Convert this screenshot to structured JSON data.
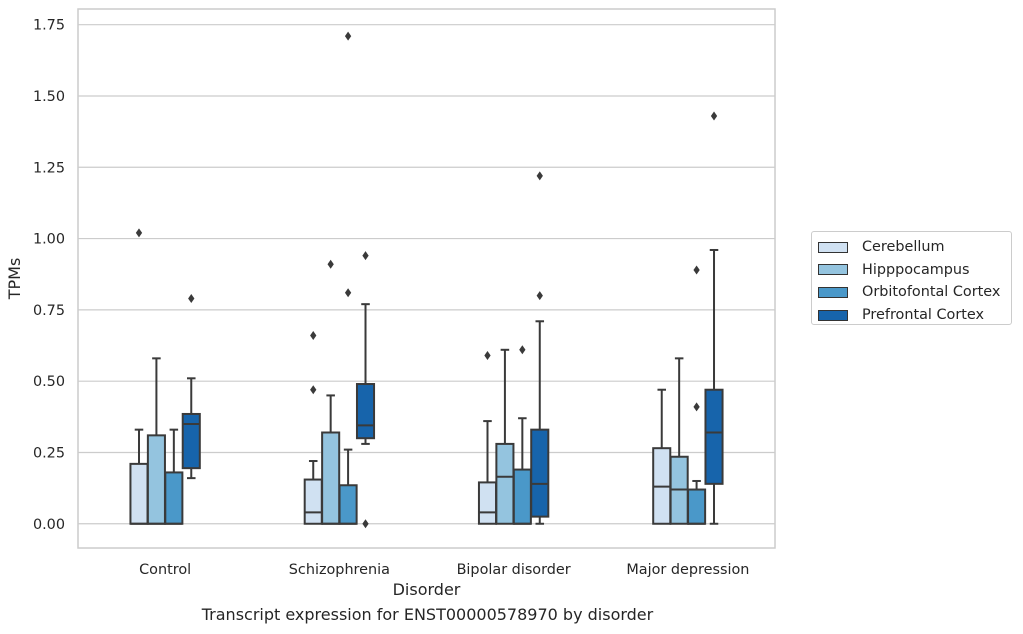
{
  "caption": "Transcript expression for ENST00000578970 by disorder",
  "chart_data": {
    "type": "box",
    "title": "",
    "xlabel": "Disorder",
    "ylabel": "TPMs",
    "ylim": [
      -0.085,
      1.805
    ],
    "yticks": [
      0.0,
      0.25,
      0.5,
      0.75,
      1.0,
      1.25,
      1.5,
      1.75
    ],
    "ytick_labels": [
      "0.00",
      "0.25",
      "0.50",
      "0.75",
      "1.00",
      "1.25",
      "1.50",
      "1.75"
    ],
    "grid": "horizontal",
    "legend_position": "right",
    "categories": [
      "Control",
      "Schizophrenia",
      "Bipolar disorder",
      "Major depression"
    ],
    "series": [
      {
        "name": "Cerebellum",
        "color": "#d0e1f2",
        "boxes": [
          {
            "whislo": 0.0,
            "q1": 0.0,
            "med": 0.0,
            "q3": 0.21,
            "whishi": 0.33,
            "fliers": [
              1.02
            ]
          },
          {
            "whislo": 0.0,
            "q1": 0.0,
            "med": 0.04,
            "q3": 0.155,
            "whishi": 0.22,
            "fliers": [
              0.66,
              0.47
            ]
          },
          {
            "whislo": 0.0,
            "q1": 0.0,
            "med": 0.04,
            "q3": 0.145,
            "whishi": 0.36,
            "fliers": [
              0.59
            ]
          },
          {
            "whislo": 0.0,
            "q1": 0.0,
            "med": 0.13,
            "q3": 0.265,
            "whishi": 0.47,
            "fliers": []
          }
        ]
      },
      {
        "name": "Hipppocampus",
        "color": "#94c4df",
        "boxes": [
          {
            "whislo": 0.0,
            "q1": 0.0,
            "med": 0.0,
            "q3": 0.31,
            "whishi": 0.58,
            "fliers": []
          },
          {
            "whislo": 0.0,
            "q1": 0.0,
            "med": 0.0,
            "q3": 0.32,
            "whishi": 0.45,
            "fliers": [
              0.91
            ]
          },
          {
            "whislo": 0.0,
            "q1": 0.0,
            "med": 0.165,
            "q3": 0.28,
            "whishi": 0.61,
            "fliers": []
          },
          {
            "whislo": 0.0,
            "q1": 0.0,
            "med": 0.12,
            "q3": 0.235,
            "whishi": 0.58,
            "fliers": []
          }
        ]
      },
      {
        "name": "Orbitofontal Cortex",
        "color": "#4a98c9",
        "boxes": [
          {
            "whislo": 0.0,
            "q1": 0.0,
            "med": 0.0,
            "q3": 0.18,
            "whishi": 0.33,
            "fliers": []
          },
          {
            "whislo": 0.0,
            "q1": 0.0,
            "med": 0.0,
            "q3": 0.135,
            "whishi": 0.26,
            "fliers": [
              1.71,
              0.81
            ]
          },
          {
            "whislo": 0.0,
            "q1": 0.0,
            "med": 0.0,
            "q3": 0.19,
            "whishi": 0.37,
            "fliers": [
              0.61
            ]
          },
          {
            "whislo": 0.0,
            "q1": 0.0,
            "med": 0.0,
            "q3": 0.12,
            "whishi": 0.15,
            "fliers": [
              0.89,
              0.41
            ]
          }
        ]
      },
      {
        "name": "Prefrontal Cortex",
        "color": "#1764ab",
        "boxes": [
          {
            "whislo": 0.16,
            "q1": 0.195,
            "med": 0.35,
            "q3": 0.385,
            "whishi": 0.51,
            "fliers": [
              0.79
            ]
          },
          {
            "whislo": 0.28,
            "q1": 0.3,
            "med": 0.345,
            "q3": 0.49,
            "whishi": 0.77,
            "fliers": [
              0.94,
              0.0
            ]
          },
          {
            "whislo": 0.0,
            "q1": 0.025,
            "med": 0.14,
            "q3": 0.33,
            "whishi": 0.71,
            "fliers": [
              1.22,
              0.8
            ]
          },
          {
            "whislo": 0.0,
            "q1": 0.14,
            "med": 0.32,
            "q3": 0.47,
            "whishi": 0.96,
            "fliers": [
              1.43
            ]
          }
        ]
      }
    ]
  }
}
